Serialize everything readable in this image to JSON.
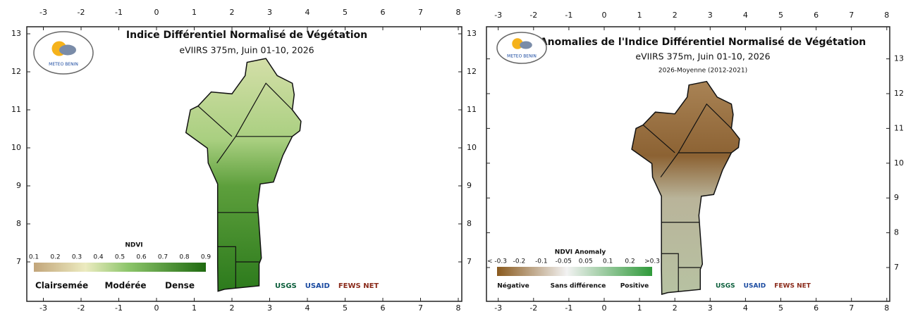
{
  "panels": [
    {
      "title": "Indice Différentiel Normalisé de Végétation",
      "subtitle": "eVIIRS 375m, Juin 01-10, 2026",
      "logo": "METEO BENIN",
      "lon_ticks": [
        -3,
        -2,
        -1,
        0,
        1,
        2,
        3,
        4,
        5,
        6,
        7,
        8
      ],
      "lat_ticks": [
        13,
        12,
        11,
        10,
        9,
        8,
        7
      ],
      "legend": {
        "title": "NDVI",
        "labels": [
          "0.1",
          "0.2",
          "0.3",
          "0.4",
          "0.5",
          "0.6",
          "0.7",
          "0.8",
          "0.9"
        ],
        "classes": [
          "Clairsemée",
          "Modérée",
          "Dense"
        ]
      },
      "partners": [
        "USGS",
        "USAID",
        "FEWS NET"
      ]
    },
    {
      "title": "Anomalies de l'Indice Différentiel Normalisé de Végétation",
      "subtitle": "eVIIRS 375m, Juin 01-10, 2026",
      "note": "2026-Moyenne (2012-2021)",
      "logo": "METEO BENIN",
      "lon_ticks": [
        -3,
        -2,
        -1,
        0,
        1,
        2,
        3,
        4,
        5,
        6,
        7,
        8
      ],
      "lat_ticks": [
        13,
        12,
        11,
        10,
        9,
        8,
        7
      ],
      "legend": {
        "title": "NDVI Anomaly",
        "labels": [
          "< -0.3",
          "-0.2",
          "-0.1",
          "-0.05",
          "0.05",
          "0.1",
          "0.2",
          ">0.3"
        ],
        "classes": [
          "Négative",
          "Sans différence",
          "Positive"
        ]
      },
      "partners": [
        "USGS",
        "USAID",
        "FEWS NET"
      ]
    }
  ]
}
